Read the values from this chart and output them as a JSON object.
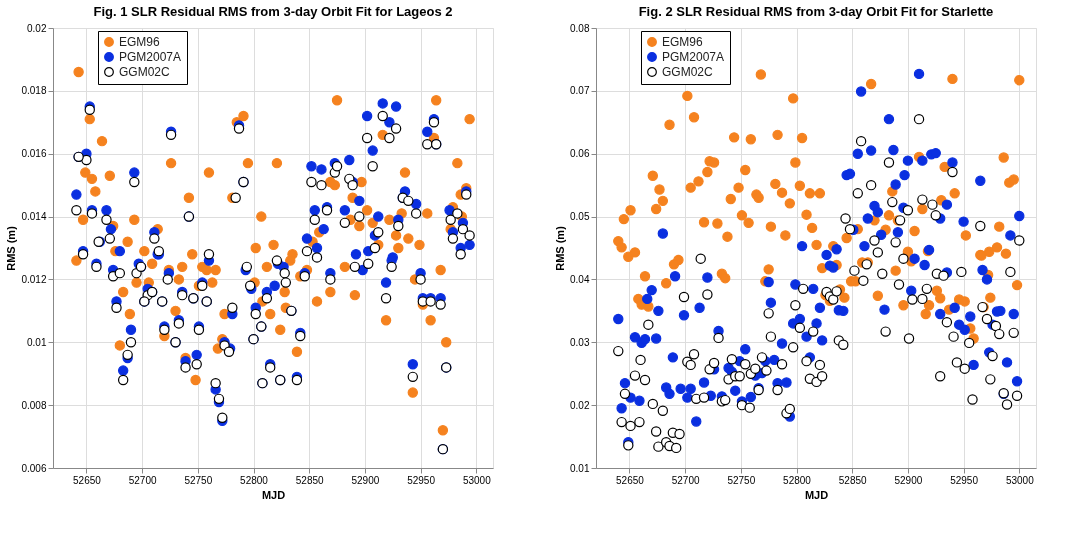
{
  "chart_data": [
    {
      "type": "scatter",
      "title": "Fig. 1 SLR Residual RMS from 3-day Orbit Fit for Lageos 2",
      "xlabel": "MJD",
      "ylabel": "RMS (m)",
      "xlim": [
        52620,
        53015
      ],
      "ylim": [
        0.006,
        0.02
      ],
      "xticks": [
        52650,
        52700,
        52750,
        52800,
        52850,
        52900,
        52950,
        53000
      ],
      "yticks": [
        0.006,
        0.008,
        0.01,
        0.012,
        0.014,
        0.016,
        0.018,
        0.02
      ],
      "grid": true,
      "legend": "top left",
      "marker": "circle",
      "series": [
        {
          "name": "EGM96",
          "color": "#f5821f",
          "x": [
            52643,
            52653,
            52664,
            52726,
            52649,
            52655,
            52658,
            52671,
            52760,
            52742,
            52647,
            52693,
            52674,
            52875,
            52964,
            52994,
            52785,
            52791,
            52795,
            52821,
            52983,
            52936,
            52869,
            52873,
            52897,
            52889,
            52916,
            52962,
            52781,
            52807,
            52902,
            52895,
            52907,
            52922,
            52933,
            52956,
            52979,
            52986,
            52991,
            52977,
            52987,
            52859,
            52853,
            52928,
            52939,
            52912,
            52930,
            52949,
            52802,
            52818,
            52835,
            52745,
            52714,
            52702,
            52687,
            52676,
            52641,
            52887,
            52709,
            52695,
            52706,
            52724,
            52733,
            52736,
            52730,
            52683,
            52689,
            52680,
            52754,
            52758,
            52766,
            52763,
            52751,
            52801,
            52812,
            52828,
            52829,
            52815,
            52808,
            52824,
            52839,
            52774,
            52772,
            52768,
            52748,
            52739,
            52720,
            52833,
            52842,
            52848,
            52857,
            52869,
            52882,
            52891,
            52919,
            52945,
            52952,
            52959,
            52968,
            52973,
            52943,
            52970
          ],
          "values": [
            0.0186,
            0.0171,
            0.0164,
            0.0157,
            0.0154,
            0.0152,
            0.0148,
            0.0153,
            0.0154,
            0.0146,
            0.0139,
            0.0139,
            0.0137,
            0.0177,
            0.0177,
            0.0171,
            0.017,
            0.0172,
            0.0157,
            0.0157,
            0.0157,
            0.0154,
            0.0151,
            0.015,
            0.0151,
            0.0146,
            0.0166,
            0.0165,
            0.0146,
            0.014,
            0.0142,
            0.0137,
            0.0138,
            0.0139,
            0.0141,
            0.0141,
            0.0143,
            0.0147,
            0.0149,
            0.0136,
            0.014,
            0.0135,
            0.0132,
            0.0134,
            0.0133,
            0.0131,
            0.013,
            0.0131,
            0.013,
            0.0131,
            0.0128,
            0.0128,
            0.0136,
            0.0129,
            0.0132,
            0.0129,
            0.0126,
            0.0139,
            0.0125,
            0.0119,
            0.0119,
            0.0123,
            0.012,
            0.0124,
            0.011,
            0.0116,
            0.0109,
            0.0099,
            0.0124,
            0.0123,
            0.0123,
            0.0119,
            0.0118,
            0.0119,
            0.0124,
            0.0116,
            0.0111,
            0.0109,
            0.0113,
            0.0104,
            0.0097,
            0.0109,
            0.0101,
            0.0098,
            0.0088,
            0.0095,
            0.0102,
            0.0126,
            0.0121,
            0.0123,
            0.0113,
            0.0116,
            0.0124,
            0.0115,
            0.0107,
            0.012,
            0.0112,
            0.0107,
            0.0123,
            0.01,
            0.0084,
            0.0072
          ]
        },
        {
          "name": "PGM2007A",
          "color": "#0a2fe0",
          "x": [
            52653,
            52643,
            52650,
            52641,
            52726,
            52693,
            52787,
            52791,
            52655,
            52668,
            52672,
            52680,
            52647,
            52662,
            52742,
            52711,
            52715,
            52916,
            52928,
            52902,
            52922,
            52907,
            52962,
            52956,
            52964,
            52852,
            52861,
            52873,
            52886,
            52889,
            52866,
            52882,
            52895,
            52855,
            52863,
            52848,
            52857,
            52892,
            52903,
            52912,
            52909,
            52925,
            52930,
            52936,
            52946,
            52934,
            52976,
            52979,
            52988,
            52986,
            52994,
            52991,
            52760,
            52822,
            52659,
            52674,
            52697,
            52699,
            52705,
            52709,
            52702,
            52714,
            52724,
            52718,
            52677,
            52720,
            52690,
            52687,
            52683,
            52730,
            52733,
            52739,
            52736,
            52746,
            52754,
            52758,
            52751,
            52749,
            52766,
            52769,
            52772,
            52774,
            52779,
            52781,
            52793,
            52798,
            52802,
            52807,
            52800,
            52808,
            52812,
            52819,
            52827,
            52834,
            52824,
            52815,
            52839,
            52842,
            52846,
            52869,
            52898,
            52924,
            52919,
            52943,
            52950,
            52952,
            52959,
            52968,
            52970,
            52973
          ],
          "values": [
            0.0175,
            0.0159,
            0.016,
            0.0147,
            0.0167,
            0.0154,
            0.0169,
            0.0151,
            0.0142,
            0.0142,
            0.0136,
            0.0129,
            0.0129,
            0.0132,
            0.014,
            0.0135,
            0.0128,
            0.0176,
            0.0175,
            0.0172,
            0.017,
            0.0161,
            0.0171,
            0.0167,
            0.0163,
            0.0156,
            0.0155,
            0.0157,
            0.0158,
            0.0151,
            0.0143,
            0.0142,
            0.0145,
            0.0142,
            0.0136,
            0.0133,
            0.013,
            0.0128,
            0.0129,
            0.014,
            0.0134,
            0.0127,
            0.0139,
            0.0148,
            0.0144,
            0.0146,
            0.0142,
            0.0135,
            0.0138,
            0.013,
            0.0131,
            0.0148,
            0.0126,
            0.0125,
            0.0125,
            0.0123,
            0.0125,
            0.0124,
            0.0117,
            0.0116,
            0.0113,
            0.0128,
            0.0122,
            0.0113,
            0.0113,
            0.0105,
            0.0104,
            0.0095,
            0.0091,
            0.01,
            0.0107,
            0.0094,
            0.0116,
            0.0114,
            0.0119,
            0.0113,
            0.0105,
            0.0096,
            0.0085,
            0.0081,
            0.0075,
            0.01,
            0.0098,
            0.0109,
            0.0123,
            0.0117,
            0.0111,
            0.0105,
            0.0101,
            0.0087,
            0.0116,
            0.0118,
            0.0124,
            0.011,
            0.0088,
            0.0093,
            0.0089,
            0.0103,
            0.0122,
            0.0122,
            0.0123,
            0.0126,
            0.0119,
            0.0093,
            0.0122,
            0.0114,
            0.0114,
            0.0114,
            0.0066,
            0.0092
          ]
        },
        {
          "name": "GGM02C",
          "color": "#000000",
          "x": [
            52653,
            52650,
            52643,
            52641,
            52726,
            52693,
            52787,
            52655,
            52668,
            52671,
            52647,
            52661,
            52742,
            52711,
            52715,
            52760,
            52784,
            52791,
            52902,
            52916,
            52922,
            52928,
            52907,
            52956,
            52962,
            52964,
            52852,
            52861,
            52873,
            52875,
            52886,
            52889,
            52866,
            52882,
            52895,
            52855,
            52848,
            52857,
            52909,
            52912,
            52930,
            52934,
            52939,
            52946,
            52977,
            52983,
            52979,
            52988,
            52986,
            52994,
            52991,
            52821,
            52659,
            52674,
            52680,
            52695,
            52699,
            52705,
            52709,
            52702,
            52723,
            52718,
            52677,
            52720,
            52690,
            52687,
            52683,
            52730,
            52733,
            52739,
            52736,
            52746,
            52754,
            52758,
            52751,
            52749,
            52766,
            52769,
            52772,
            52774,
            52778,
            52781,
            52794,
            52797,
            52802,
            52807,
            52800,
            52808,
            52812,
            52828,
            52829,
            52834,
            52824,
            52815,
            52839,
            52842,
            52846,
            52869,
            52891,
            52903,
            52924,
            52919,
            52943,
            52950,
            52952,
            52959,
            52968,
            52970,
            52973
          ],
          "values": [
            0.0174,
            0.0158,
            0.0159,
            0.0142,
            0.0166,
            0.0151,
            0.0168,
            0.0141,
            0.0139,
            0.0133,
            0.0128,
            0.0132,
            0.014,
            0.0133,
            0.0129,
            0.0128,
            0.0146,
            0.0151,
            0.0165,
            0.0172,
            0.0165,
            0.0168,
            0.0156,
            0.0163,
            0.017,
            0.0163,
            0.0151,
            0.015,
            0.0154,
            0.0156,
            0.0152,
            0.015,
            0.0142,
            0.0138,
            0.014,
            0.0139,
            0.0129,
            0.0127,
            0.013,
            0.0135,
            0.0137,
            0.0146,
            0.0145,
            0.0141,
            0.0139,
            0.0141,
            0.0133,
            0.0136,
            0.0128,
            0.0134,
            0.0147,
            0.0126,
            0.0124,
            0.0121,
            0.0122,
            0.0122,
            0.0124,
            0.0115,
            0.0116,
            0.0113,
            0.012,
            0.0113,
            0.0111,
            0.0104,
            0.01,
            0.0096,
            0.0088,
            0.01,
            0.0106,
            0.0092,
            0.0115,
            0.0114,
            0.0118,
            0.0113,
            0.0104,
            0.0093,
            0.0087,
            0.0082,
            0.0076,
            0.0099,
            0.0097,
            0.0111,
            0.0124,
            0.0118,
            0.0109,
            0.0105,
            0.0101,
            0.0087,
            0.0114,
            0.0122,
            0.0119,
            0.011,
            0.0088,
            0.0092,
            0.0088,
            0.0102,
            0.0121,
            0.012,
            0.0124,
            0.0125,
            0.0124,
            0.0114,
            0.0089,
            0.012,
            0.0113,
            0.0113,
            0.0112,
            0.0066,
            0.0092
          ]
        }
      ]
    },
    {
      "type": "scatter",
      "title": "Fig. 2 SLR Residual RMS from 3-day Orbit Fit for Starlette",
      "xlabel": "MJD",
      "ylabel": "RMS (m)",
      "xlim": [
        52620,
        53015
      ],
      "ylim": [
        0.01,
        0.08
      ],
      "xticks": [
        52650,
        52700,
        52750,
        52800,
        52850,
        52900,
        52950,
        53000
      ],
      "yticks": [
        0.01,
        0.02,
        0.03,
        0.04,
        0.05,
        0.06,
        0.07,
        0.08
      ],
      "grid": true,
      "legend": "top left",
      "marker": "circle",
      "series": [
        {
          "name": "EGM96",
          "color": "#f5821f",
          "x": [
            52768,
            52702,
            52708,
            52686,
            52867,
            52940,
            53000,
            52797,
            52744,
            52759,
            52783,
            52805,
            52799,
            52722,
            52726,
            52754,
            52910,
            52986,
            52933,
            52671,
            52677,
            52680,
            52674,
            52651,
            52645,
            52640,
            52643,
            52649,
            52655,
            52705,
            52712,
            52720,
            52717,
            52729,
            52741,
            52748,
            52751,
            52757,
            52738,
            52764,
            52766,
            52781,
            52787,
            52794,
            52777,
            52790,
            52803,
            52812,
            52821,
            52809,
            52814,
            52818,
            52845,
            52833,
            52855,
            52870,
            52883,
            52891,
            52880,
            52886,
            52906,
            52913,
            52930,
            52900,
            52918,
            52942,
            52952,
            52965,
            52973,
            52980,
            52982,
            52988,
            52991,
            52995,
            52694,
            52690,
            52664,
            52683,
            52658,
            52661,
            52667,
            52733,
            52736,
            52775,
            52772,
            52823,
            52826,
            52830,
            52836,
            52839,
            52843,
            52849,
            52853,
            52859,
            52864,
            52873,
            52889,
            52896,
            52903,
            52916,
            52919,
            52926,
            52929,
            52937,
            52946,
            52951,
            52956,
            52959,
            52966,
            52968,
            52972,
            52974,
            52998
          ],
          "values": [
            0.0726,
            0.0692,
            0.0658,
            0.0646,
            0.0711,
            0.0719,
            0.0717,
            0.0688,
            0.0626,
            0.0623,
            0.063,
            0.0625,
            0.0586,
            0.0588,
            0.0586,
            0.0574,
            0.0595,
            0.0594,
            0.0579,
            0.0565,
            0.0543,
            0.0525,
            0.0512,
            0.051,
            0.0496,
            0.0461,
            0.0451,
            0.0436,
            0.0443,
            0.0546,
            0.0556,
            0.0571,
            0.0491,
            0.0489,
            0.0528,
            0.0546,
            0.0502,
            0.049,
            0.0468,
            0.0535,
            0.053,
            0.0552,
            0.0538,
            0.0521,
            0.0484,
            0.047,
            0.0549,
            0.0537,
            0.0537,
            0.0503,
            0.0482,
            0.0455,
            0.0466,
            0.0453,
            0.048,
            0.0494,
            0.0502,
            0.0494,
            0.0479,
            0.054,
            0.0477,
            0.0512,
            0.0526,
            0.0444,
            0.0445,
            0.0537,
            0.047,
            0.0439,
            0.0444,
            0.0451,
            0.0484,
            0.0441,
            0.0554,
            0.0559,
            0.0431,
            0.0424,
            0.0405,
            0.0394,
            0.0369,
            0.036,
            0.0357,
            0.0409,
            0.0402,
            0.0416,
            0.0397,
            0.0418,
            0.0375,
            0.0366,
            0.0423,
            0.0384,
            0.0371,
            0.0397,
            0.0397,
            0.0427,
            0.0427,
            0.0374,
            0.0414,
            0.0359,
            0.0429,
            0.0345,
            0.0359,
            0.0382,
            0.037,
            0.0352,
            0.0368,
            0.0365,
            0.0322,
            0.0306,
            0.0438,
            0.0356,
            0.0407,
            0.0371,
            0.0391
          ]
        },
        {
          "name": "PGM2007A",
          "color": "#0a2fe0",
          "x": [
            52910,
            52858,
            52883,
            52855,
            52867,
            52887,
            52900,
            52913,
            52921,
            52925,
            52940,
            52845,
            52848,
            52889,
            52897,
            52870,
            52873,
            52864,
            52896,
            52935,
            52929,
            52950,
            52965,
            53000,
            52992,
            52680,
            52805,
            52827,
            52836,
            52861,
            52876,
            52891,
            52906,
            52919,
            52851,
            52640,
            52691,
            52655,
            52661,
            52664,
            52666,
            52670,
            52676,
            52674,
            52689,
            52643,
            52646,
            52651,
            52659,
            52649,
            52683,
            52686,
            52696,
            52699,
            52702,
            52705,
            52710,
            52713,
            52717,
            52720,
            52723,
            52726,
            52730,
            52733,
            52739,
            52742,
            52745,
            52749,
            52754,
            52751,
            52759,
            52763,
            52766,
            52769,
            52775,
            52777,
            52772,
            52780,
            52783,
            52787,
            52791,
            52794,
            52797,
            52799,
            52803,
            52809,
            52812,
            52815,
            52818,
            52821,
            52823,
            52830,
            52833,
            52838,
            52842,
            52879,
            52903,
            52915,
            52929,
            52935,
            52942,
            52946,
            52951,
            52956,
            52959,
            52967,
            52971,
            52973,
            52976,
            52980,
            52983,
            52986,
            52989,
            52995,
            52998
          ],
          "values": [
            0.0727,
            0.0699,
            0.0655,
            0.06,
            0.0605,
            0.0606,
            0.0589,
            0.0589,
            0.0599,
            0.0601,
            0.0586,
            0.0566,
            0.0568,
            0.0551,
            0.0566,
            0.0517,
            0.0507,
            0.0497,
            0.0514,
            0.0519,
            0.0497,
            0.0492,
            0.0557,
            0.0501,
            0.047,
            0.0473,
            0.0453,
            0.0439,
            0.0448,
            0.0453,
            0.0471,
            0.0475,
            0.0433,
            0.0447,
            0.0479,
            0.0337,
            0.0405,
            0.0308,
            0.0299,
            0.0305,
            0.0369,
            0.0383,
            0.035,
            0.0306,
            0.0276,
            0.0195,
            0.0235,
            0.0212,
            0.0207,
            0.0141,
            0.0228,
            0.0218,
            0.0226,
            0.0343,
            0.0212,
            0.0226,
            0.0174,
            0.0355,
            0.0236,
            0.0403,
            0.0215,
            0.0257,
            0.0318,
            0.0214,
            0.0259,
            0.0253,
            0.0223,
            0.027,
            0.0289,
            0.0206,
            0.0213,
            0.0247,
            0.0227,
            0.0251,
            0.0396,
            0.0363,
            0.027,
            0.0272,
            0.0235,
            0.0298,
            0.0236,
            0.0182,
            0.033,
            0.0392,
            0.0337,
            0.0309,
            0.0276,
            0.0385,
            0.033,
            0.0355,
            0.0303,
            0.0422,
            0.0419,
            0.0351,
            0.035,
            0.0352,
            0.0382,
            0.0423,
            0.0345,
            0.0411,
            0.0355,
            0.0328,
            0.032,
            0.0341,
            0.0264,
            0.0415,
            0.04,
            0.0284,
            0.0328,
            0.0349,
            0.035,
            0.0218,
            0.0268,
            0.0345,
            0.0238
          ]
        },
        {
          "name": "GGM02C",
          "color": "#000000",
          "x": [
            52910,
            52858,
            52883,
            52940,
            52867,
            52855,
            52886,
            52913,
            52922,
            52900,
            52925,
            52844,
            52848,
            52893,
            52965,
            52870,
            52889,
            52873,
            52896,
            53000,
            52714,
            52640,
            52646,
            52643,
            52651,
            52659,
            52649,
            52655,
            52660,
            52664,
            52667,
            52671,
            52674,
            52676,
            52680,
            52683,
            52686,
            52689,
            52692,
            52695,
            52699,
            52702,
            52705,
            52708,
            52710,
            52717,
            52720,
            52722,
            52726,
            52730,
            52733,
            52736,
            52739,
            52742,
            52745,
            52749,
            52751,
            52754,
            52758,
            52759,
            52763,
            52766,
            52769,
            52773,
            52775,
            52777,
            52783,
            52787,
            52791,
            52794,
            52797,
            52799,
            52803,
            52806,
            52809,
            52812,
            52815,
            52818,
            52821,
            52823,
            52827,
            52830,
            52833,
            52836,
            52838,
            52842,
            52852,
            52860,
            52863,
            52877,
            52880,
            52892,
            52901,
            52904,
            52913,
            52917,
            52926,
            52929,
            52932,
            52935,
            52941,
            52944,
            52948,
            52951,
            52955,
            52958,
            52967,
            52971,
            52974,
            52976,
            52979,
            52982,
            52986,
            52989,
            52992,
            52995,
            52998
          ],
          "values": [
            0.0655,
            0.062,
            0.0586,
            0.0571,
            0.055,
            0.0537,
            0.0523,
            0.0527,
            0.0519,
            0.051,
            0.0502,
            0.0497,
            0.048,
            0.0494,
            0.0485,
            0.0462,
            0.0459,
            0.0443,
            0.0433,
            0.0462,
            0.0433,
            0.0286,
            0.0218,
            0.0173,
            0.0167,
            0.0173,
            0.0136,
            0.0247,
            0.0272,
            0.024,
            0.0328,
            0.0202,
            0.0158,
            0.0134,
            0.0191,
            0.0141,
            0.0135,
            0.0156,
            0.0132,
            0.0154,
            0.0372,
            0.0269,
            0.0264,
            0.0281,
            0.021,
            0.0212,
            0.0376,
            0.0257,
            0.0267,
            0.0307,
            0.0206,
            0.0208,
            0.0241,
            0.0273,
            0.0246,
            0.0246,
            0.02,
            0.0265,
            0.0196,
            0.025,
            0.0258,
            0.0224,
            0.0276,
            0.0255,
            0.0346,
            0.0309,
            0.0224,
            0.0265,
            0.0187,
            0.0194,
            0.0292,
            0.0359,
            0.0323,
            0.0385,
            0.027,
            0.0242,
            0.0317,
            0.0237,
            0.0264,
            0.0246,
            0.038,
            0.0373,
            0.0368,
            0.0381,
            0.0303,
            0.0296,
            0.0414,
            0.0398,
            0.0424,
            0.0409,
            0.0317,
            0.0392,
            0.0306,
            0.0368,
            0.0369,
            0.0385,
            0.0409,
            0.0246,
            0.0406,
            0.0332,
            0.0309,
            0.0268,
            0.0412,
            0.0258,
            0.0299,
            0.0209,
            0.0356,
            0.0337,
            0.0241,
            0.0278,
            0.0326,
            0.0313,
            0.0219,
            0.0201,
            0.0412,
            0.0315,
            0.0215
          ]
        }
      ]
    }
  ]
}
